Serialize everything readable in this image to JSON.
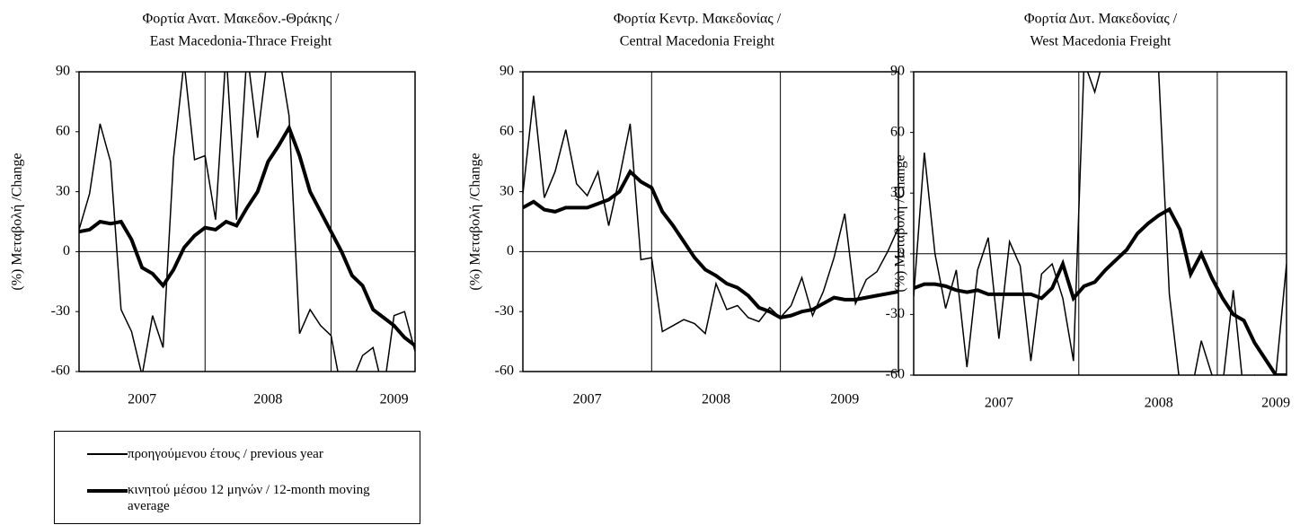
{
  "chart_data": [
    {
      "type": "line",
      "title": [
        "Φορτία Ανατ. Μακεδον.-Θράκης /",
        "East Macedonia-Thrace Freight"
      ],
      "ylabel": "(%) Μεταβολή /Change",
      "categories": [
        null,
        null,
        null,
        null,
        null,
        null,
        "2007",
        null,
        null,
        null,
        null,
        null,
        null,
        null,
        null,
        null,
        null,
        null,
        "2008",
        null,
        null,
        null,
        null,
        null,
        null,
        null,
        null,
        null,
        null,
        null,
        "2009",
        null,
        null
      ],
      "ylim": [
        -60,
        90
      ],
      "yticks": [
        -60,
        -30,
        0,
        30,
        60,
        90
      ],
      "grid": false,
      "series": [
        {
          "name": "προηγούμενου έτους / previous year",
          "color": "#000000",
          "width": 1.5,
          "values": [
            11,
            29,
            64,
            45,
            -29,
            -40,
            -62,
            -32,
            -48,
            47,
            95,
            46,
            48,
            16,
            100,
            16,
            100,
            57,
            100,
            100,
            68,
            -41,
            -29,
            -37,
            -42,
            -70,
            -65,
            -52,
            -48,
            -70,
            -32,
            -30,
            -50
          ]
        },
        {
          "name": "κινητού μέσου 12 μηνών / 12-month moving average",
          "color": "#000000",
          "width": 4,
          "values": [
            10,
            11,
            15,
            14,
            15,
            6,
            -8,
            -11,
            -17,
            -9,
            2,
            8,
            12,
            11,
            15,
            13,
            22,
            30,
            45,
            53,
            62,
            48,
            30,
            20,
            10,
            0,
            -12,
            -17,
            -29,
            -33,
            -37,
            -43,
            -47
          ]
        }
      ]
    },
    {
      "type": "line",
      "title": [
        "Φορτία Κεντρ. Μακεδονίας /",
        "Central Macedonia Freight"
      ],
      "ylabel": "(%) Μεταβολή /Change",
      "categories": [
        null,
        null,
        null,
        null,
        null,
        null,
        "2007",
        null,
        null,
        null,
        null,
        null,
        null,
        null,
        null,
        null,
        null,
        null,
        "2008",
        null,
        null,
        null,
        null,
        null,
        null,
        null,
        null,
        null,
        null,
        null,
        "2009",
        null,
        null,
        null,
        null,
        null
      ],
      "ylim": [
        -60,
        90
      ],
      "yticks": [
        -60,
        -30,
        0,
        30,
        60,
        90
      ],
      "grid": false,
      "series": [
        {
          "name": "προηγούμενου έτους / previous year",
          "color": "#000000",
          "width": 1.5,
          "values": [
            29,
            78,
            27,
            40,
            61,
            34,
            28,
            40,
            13,
            37,
            64,
            -4,
            -3,
            -40,
            -37,
            -34,
            -36,
            -41,
            -16,
            -29,
            -27,
            -33,
            -35,
            -28,
            -33,
            -27,
            -13,
            -32,
            -20,
            -3,
            19,
            -26,
            -14,
            -10,
            0,
            12
          ]
        },
        {
          "name": "κινητού μέσου 12 μηνών / 12-month moving average",
          "color": "#000000",
          "width": 4,
          "values": [
            22,
            25,
            21,
            20,
            22,
            22,
            22,
            24,
            26,
            30,
            40,
            35,
            32,
            20,
            13,
            5,
            -3,
            -9,
            -12,
            -16,
            -18,
            -22,
            -28,
            -30,
            -33,
            -32,
            -30,
            -29,
            -26,
            -23,
            -24,
            -24,
            -23,
            -22,
            -21,
            -20
          ]
        }
      ]
    },
    {
      "type": "line",
      "title": [
        "Φορτία Δυτ. Μακεδονίας /",
        "West Macedonia Freight"
      ],
      "ylabel": "(%) Μεταβολή /Change",
      "categories": [
        null,
        null,
        null,
        null,
        null,
        null,
        null,
        null,
        "2007",
        null,
        null,
        null,
        null,
        null,
        null,
        null,
        null,
        null,
        null,
        null,
        null,
        null,
        null,
        "2008",
        null,
        null,
        null,
        null,
        null,
        null,
        null,
        null,
        null,
        null,
        "2009",
        null
      ],
      "ylim": [
        -60,
        90
      ],
      "yticks": [
        -60,
        -30,
        0,
        30,
        60,
        90
      ],
      "grid": false,
      "series": [
        {
          "name": "προηγούμενου έτους / previous year",
          "color": "#000000",
          "width": 1.5,
          "values": [
            -21,
            50,
            0,
            -27,
            -8,
            -56,
            -8,
            8,
            -42,
            6,
            -6,
            -53,
            -10,
            -5,
            -22,
            -53,
            95,
            80,
            100,
            100,
            100,
            100,
            100,
            90,
            -20,
            -65,
            -70,
            -43,
            -60,
            -65,
            -18,
            -70,
            -60,
            -65,
            -60,
            -5
          ]
        },
        {
          "name": "κινητού μέσου 12 μηνών / 12-month moving average",
          "color": "#000000",
          "width": 4,
          "values": [
            -17,
            -15,
            -15,
            -16,
            -18,
            -19,
            -18,
            -20,
            -20,
            -20,
            -20,
            -20,
            -22,
            -17,
            -5,
            -22,
            -16,
            -14,
            -8,
            -3,
            2,
            10,
            15,
            19,
            22,
            12,
            -10,
            0,
            -12,
            -22,
            -30,
            -33,
            -44,
            -52,
            -60,
            -60
          ]
        }
      ]
    }
  ]
}
